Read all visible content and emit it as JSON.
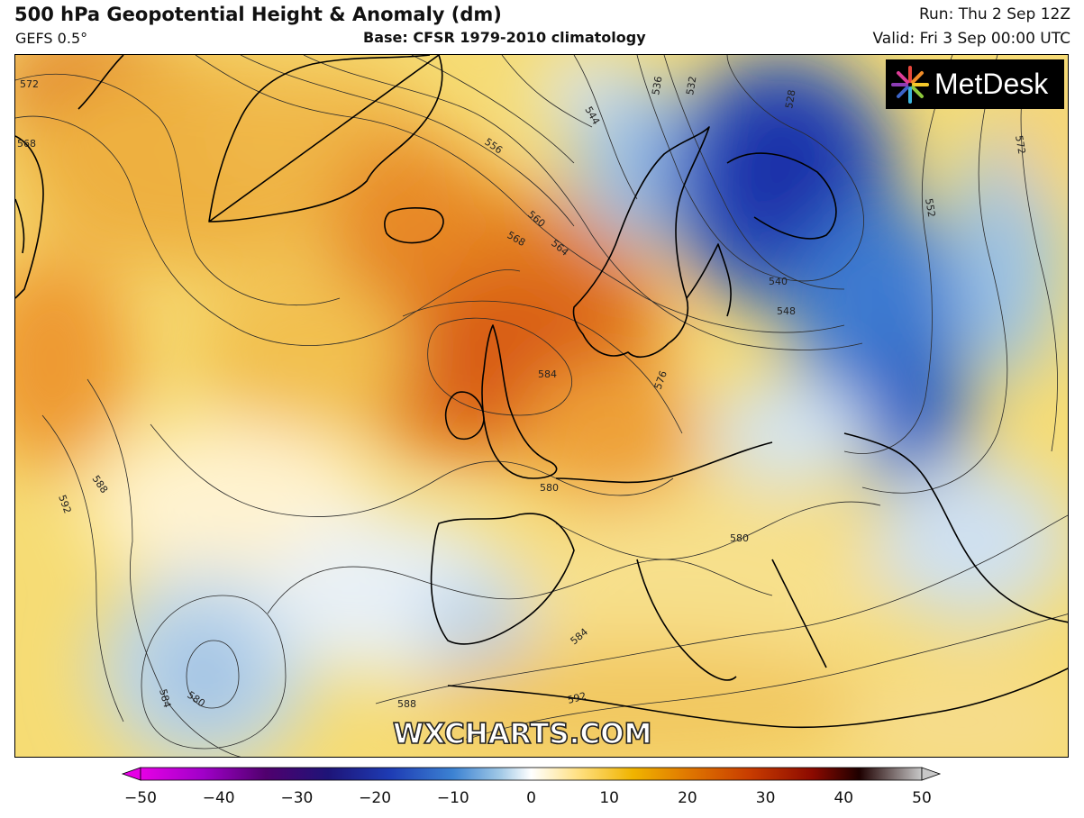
{
  "header": {
    "title": "500 hPa Geopotential Height & Anomaly (dm)",
    "model": "GEFS 0.5°",
    "base": "Base: CFSR 1979-2010 climatology",
    "run": "Run: Thu 2 Sep 12Z",
    "valid": "Valid: Fri 3 Sep 00:00 UTC"
  },
  "logo": {
    "text": "MetDesk",
    "icon": "metdesk-starburst-icon"
  },
  "watermark": "WXCHARTS.COM",
  "colorbar": {
    "min": -50,
    "max": 50,
    "ticks": [
      "−50",
      "−40",
      "−30",
      "−20",
      "−10",
      "0",
      "10",
      "20",
      "30",
      "40",
      "50"
    ],
    "colors": [
      "#e600e6",
      "#a000c8",
      "#50006e",
      "#1e1478",
      "#1e3cb4",
      "#3c82d2",
      "#a0c8e6",
      "#ffffff",
      "#ffe082",
      "#f0b400",
      "#e07800",
      "#c83c00",
      "#8c0a00",
      "#1e0000",
      "#c8c8c8"
    ]
  },
  "contour_labels": [
    "572",
    "568",
    "556",
    "544",
    "536",
    "532",
    "528",
    "572",
    "552",
    "560",
    "564",
    "568",
    "540",
    "548",
    "584",
    "576",
    "588",
    "592",
    "580",
    "580",
    "584",
    "584",
    "580",
    "588",
    "592"
  ]
}
